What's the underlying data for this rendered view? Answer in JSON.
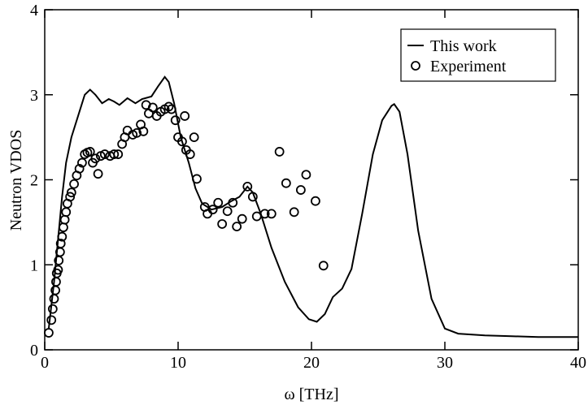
{
  "chart_data": {
    "type": "line",
    "xlabel": "ω  [THz]",
    "ylabel": "Neutron VDOS",
    "xlim": [
      0,
      40
    ],
    "xticks": [
      0,
      10,
      20,
      30,
      40
    ],
    "ylim": [
      0,
      4
    ],
    "yticks": [
      0,
      1,
      2,
      3,
      4
    ],
    "legend": "upper right",
    "series": [
      {
        "name": "This work",
        "color": "#000000",
        "kind": "line",
        "x": [
          0.3,
          0.7,
          1.0,
          1.3,
          1.6,
          2.0,
          2.5,
          3.0,
          3.4,
          3.8,
          4.3,
          4.8,
          5.2,
          5.6,
          6.2,
          6.8,
          7.3,
          8.0,
          8.5,
          9.0,
          9.3,
          9.7,
          10.2,
          10.8,
          11.3,
          11.8,
          12.5,
          13.3,
          14.0,
          14.6,
          15.2,
          15.6,
          16.2,
          17.0,
          18.0,
          19.0,
          19.8,
          20.4,
          21.0,
          21.6,
          22.3,
          23.0,
          23.8,
          24.6,
          25.3,
          26.0,
          26.2,
          26.6,
          27.2,
          28.0,
          29.0,
          30.0,
          31.0,
          33.0,
          35.0,
          37.0,
          40.0
        ],
        "values": [
          0.25,
          0.8,
          1.3,
          1.8,
          2.2,
          2.5,
          2.75,
          3.0,
          3.06,
          3.0,
          2.9,
          2.95,
          2.92,
          2.88,
          2.96,
          2.9,
          2.95,
          2.98,
          3.1,
          3.21,
          3.15,
          2.9,
          2.5,
          2.2,
          1.9,
          1.72,
          1.65,
          1.68,
          1.75,
          1.8,
          1.92,
          1.85,
          1.6,
          1.2,
          0.8,
          0.5,
          0.36,
          0.33,
          0.42,
          0.62,
          0.72,
          0.95,
          1.6,
          2.3,
          2.7,
          2.87,
          2.89,
          2.8,
          2.3,
          1.4,
          0.6,
          0.25,
          0.19,
          0.17,
          0.16,
          0.15,
          0.15
        ]
      },
      {
        "name": "Experiment",
        "color": "#000000",
        "kind": "markers",
        "x": [
          0.3,
          0.5,
          0.6,
          0.7,
          0.8,
          0.85,
          0.9,
          1.0,
          1.05,
          1.15,
          1.2,
          1.3,
          1.4,
          1.5,
          1.6,
          1.7,
          1.9,
          2.0,
          2.2,
          2.4,
          2.6,
          2.8,
          3.0,
          3.2,
          3.4,
          3.6,
          3.8,
          4.0,
          4.2,
          4.5,
          4.9,
          5.2,
          5.5,
          5.8,
          6.0,
          6.2,
          6.6,
          6.9,
          7.2,
          7.4,
          7.6,
          7.8,
          8.1,
          8.4,
          8.7,
          9.0,
          9.3,
          9.5,
          9.8,
          10.0,
          10.3,
          10.5,
          10.6,
          10.9,
          11.2,
          11.4,
          12.0,
          12.2,
          12.6,
          13.0,
          13.3,
          13.7,
          14.1,
          14.4,
          14.8,
          15.2,
          15.6,
          15.9,
          16.5,
          17.0,
          17.6,
          18.1,
          18.7,
          19.2,
          19.6,
          20.3,
          20.9
        ],
        "values": [
          0.2,
          0.35,
          0.48,
          0.6,
          0.7,
          0.8,
          0.9,
          0.94,
          1.05,
          1.15,
          1.25,
          1.33,
          1.44,
          1.53,
          1.62,
          1.72,
          1.8,
          1.85,
          1.95,
          2.05,
          2.13,
          2.2,
          2.3,
          2.32,
          2.33,
          2.2,
          2.25,
          2.07,
          2.28,
          2.3,
          2.28,
          2.3,
          2.3,
          2.42,
          2.5,
          2.58,
          2.53,
          2.55,
          2.65,
          2.57,
          2.88,
          2.78,
          2.85,
          2.75,
          2.8,
          2.83,
          2.86,
          2.83,
          2.7,
          2.5,
          2.45,
          2.75,
          2.35,
          2.3,
          2.5,
          2.01,
          1.68,
          1.6,
          1.65,
          1.73,
          1.48,
          1.63,
          1.73,
          1.45,
          1.54,
          1.92,
          1.8,
          1.57,
          1.6,
          1.6,
          2.33,
          1.96,
          1.62,
          1.88,
          2.06,
          1.75,
          0.99
        ]
      }
    ]
  }
}
